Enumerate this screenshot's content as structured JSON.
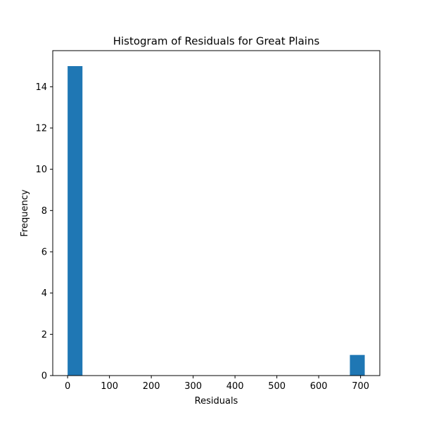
{
  "chart_data": {
    "type": "bar",
    "title": "Histogram of Residuals for Great Plains",
    "xlabel": "Residuals",
    "ylabel": "Frequency",
    "color": "#1f77b4",
    "xlim": [
      -35.5,
      746
    ],
    "ylim": [
      0,
      15.75
    ],
    "xticks": [
      0,
      100,
      200,
      300,
      400,
      500,
      600,
      700
    ],
    "yticks": [
      0,
      2,
      4,
      6,
      8,
      10,
      12,
      14
    ],
    "bins": [
      {
        "x0": 0,
        "x1": 35.5,
        "count": 15
      },
      {
        "x0": 35.5,
        "x1": 71,
        "count": 0
      },
      {
        "x0": 71,
        "x1": 106.5,
        "count": 0
      },
      {
        "x0": 106.5,
        "x1": 142,
        "count": 0
      },
      {
        "x0": 142,
        "x1": 177.5,
        "count": 0
      },
      {
        "x0": 177.5,
        "x1": 213,
        "count": 0
      },
      {
        "x0": 213,
        "x1": 248.5,
        "count": 0
      },
      {
        "x0": 248.5,
        "x1": 284,
        "count": 0
      },
      {
        "x0": 284,
        "x1": 319.5,
        "count": 0
      },
      {
        "x0": 319.5,
        "x1": 355,
        "count": 0
      },
      {
        "x0": 355,
        "x1": 390.5,
        "count": 0
      },
      {
        "x0": 390.5,
        "x1": 426,
        "count": 0
      },
      {
        "x0": 426,
        "x1": 461.5,
        "count": 0
      },
      {
        "x0": 461.5,
        "x1": 497,
        "count": 0
      },
      {
        "x0": 497,
        "x1": 532.5,
        "count": 0
      },
      {
        "x0": 532.5,
        "x1": 568,
        "count": 0
      },
      {
        "x0": 568,
        "x1": 603.5,
        "count": 0
      },
      {
        "x0": 603.5,
        "x1": 639,
        "count": 0
      },
      {
        "x0": 639,
        "x1": 674.5,
        "count": 0
      },
      {
        "x0": 674.5,
        "x1": 710,
        "count": 1
      }
    ],
    "grid": false,
    "legend": "none"
  }
}
